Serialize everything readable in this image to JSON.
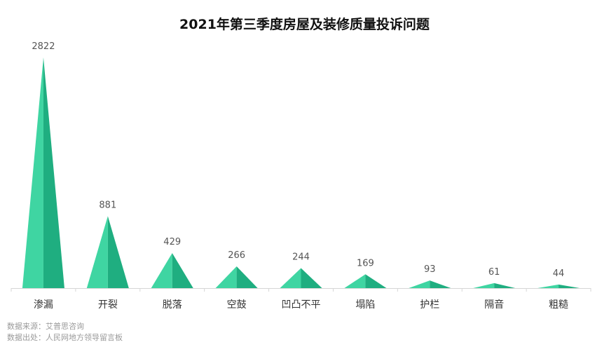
{
  "chart_data": {
    "type": "bar",
    "title": "2021年第三季度房屋及装修质量投诉问题",
    "categories": [
      "渗漏",
      "开裂",
      "脱落",
      "空鼓",
      "凹凸不平",
      "塌陷",
      "护栏",
      "隔音",
      "粗糙"
    ],
    "values": [
      2822,
      881,
      429,
      266,
      244,
      169,
      93,
      61,
      44
    ],
    "xlabel": "",
    "ylabel": "",
    "ylim": [
      0,
      2822
    ],
    "grid": false,
    "legend": "none",
    "mark_shape": "pyramid",
    "colors": {
      "light": "#3fd5a2",
      "dark": "#1fae80",
      "axis": "#d6d6d6"
    }
  },
  "source": {
    "line1": "数据来源：艾普思咨询",
    "line2": "数据出处：人民网地方领导留言板"
  }
}
